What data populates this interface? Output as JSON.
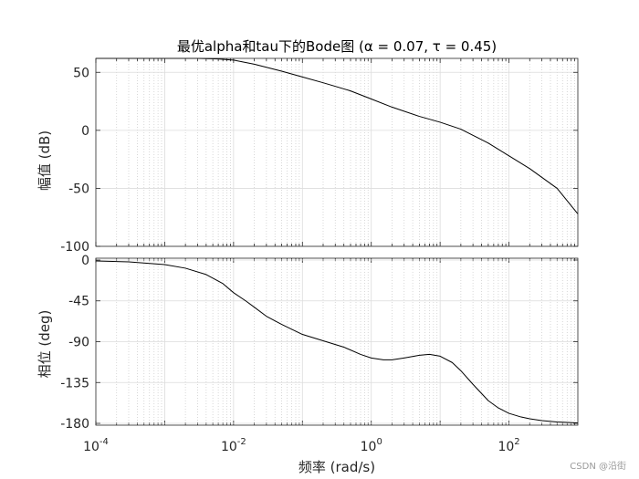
{
  "chart_data": {
    "type": "line",
    "title": "最优alpha和tau下的Bode图 (α = 0.07, τ = 0.45)",
    "xlabel": "频率  (rad/s)",
    "x_scale": "log",
    "xlim": [
      0.0001,
      1000
    ],
    "xticks": [
      {
        "value": 0.0001,
        "base": "10",
        "exp": "-4"
      },
      {
        "value": 0.01,
        "base": "10",
        "exp": "-2"
      },
      {
        "value": 1,
        "base": "10",
        "exp": "0"
      },
      {
        "value": 100,
        "base": "10",
        "exp": "2"
      }
    ],
    "grid": true,
    "subplots": [
      {
        "name": "magnitude",
        "ylabel": "幅值 (dB)",
        "ylim": [
          -100,
          62
        ],
        "yticks": [
          50,
          0,
          -50,
          -100
        ],
        "series": [
          {
            "x": [
              0.0001,
              0.0003,
              0.001,
              0.003,
              0.006,
              0.01,
              0.02,
              0.05,
              0.1,
              0.2,
              0.5,
              1,
              2,
              5,
              10,
              20,
              50,
              100,
              200,
              500,
              1000
            ],
            "values": [
              62,
              62,
              62,
              62,
              61.5,
              60.5,
              57,
              51,
              46,
              41,
              34,
              27,
              20,
              12,
              7,
              1,
              -11,
              -22,
              -33,
              -50,
              -72
            ]
          }
        ]
      },
      {
        "name": "phase",
        "ylabel": "相位 (deg)",
        "ylim": [
          -182,
          2
        ],
        "yticks": [
          0,
          -45,
          -90,
          -135,
          -180
        ],
        "series": [
          {
            "x": [
              0.0001,
              0.0003,
              0.001,
              0.002,
              0.004,
              0.007,
              0.01,
              0.015,
              0.02,
              0.03,
              0.05,
              0.1,
              0.2,
              0.4,
              0.7,
              1,
              1.5,
              2,
              3,
              5,
              7,
              10,
              15,
              20,
              30,
              50,
              70,
              100,
              150,
              200,
              300,
              500,
              1000
            ],
            "values": [
              -1,
              -2,
              -5,
              -9,
              -16,
              -26,
              -36,
              -45,
              -52,
              -62,
              -71,
              -82,
              -89,
              -96,
              -104,
              -108,
              -110,
              -110,
              -108,
              -105,
              -104,
              -106,
              -113,
              -122,
              -137,
              -155,
              -163,
              -169,
              -173,
              -175,
              -177,
              -178.5,
              -179.5
            ]
          }
        ]
      }
    ]
  },
  "watermark": "CSDN @沿街"
}
